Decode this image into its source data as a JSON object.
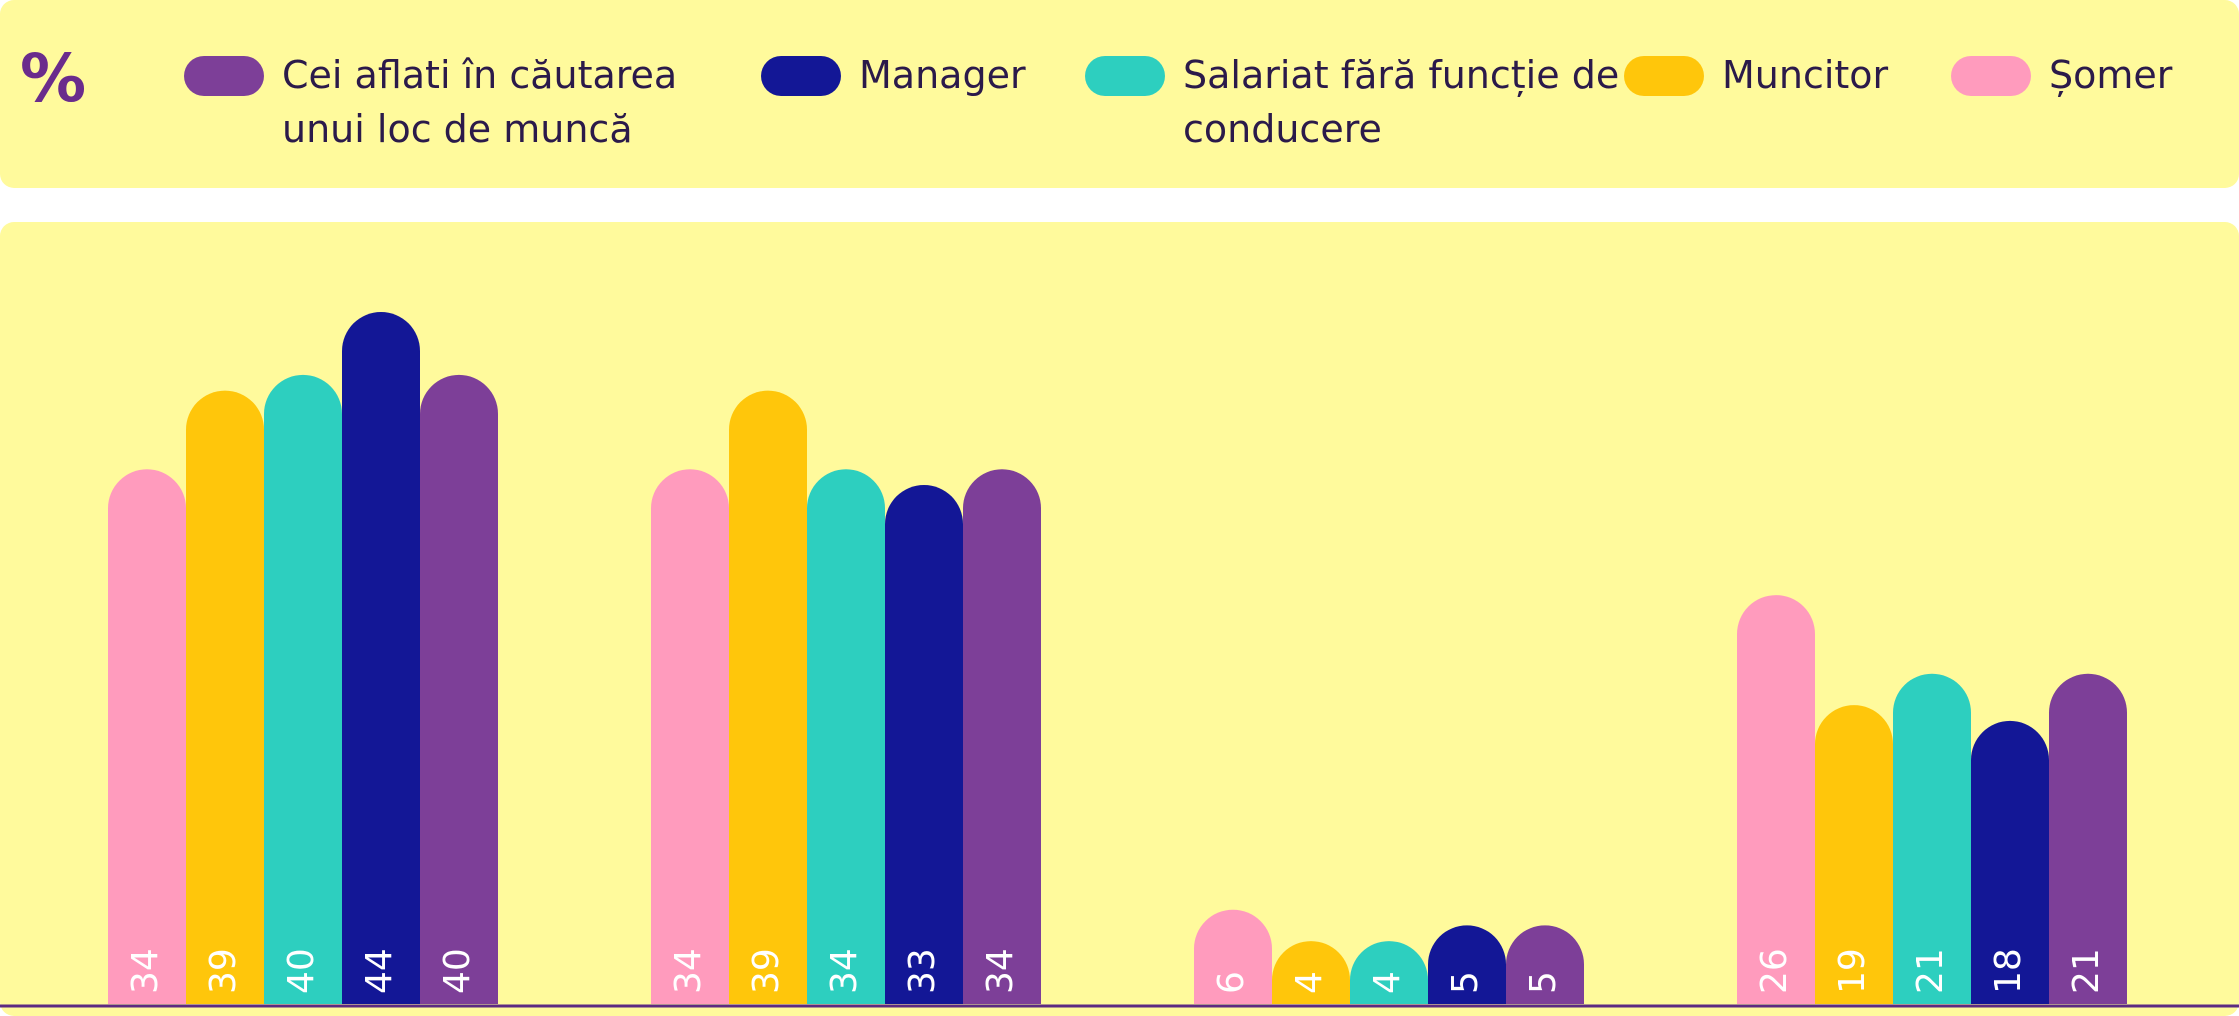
{
  "chart_data": {
    "type": "bar",
    "title": "%",
    "categories": [
      null,
      null,
      null,
      null
    ],
    "series": [
      {
        "name": "Cei aflati în căutarea unui loc de muncă",
        "color": "#7d3f98",
        "values": [
          40,
          34,
          5,
          21
        ]
      },
      {
        "name": "Manager",
        "color": "#131796",
        "values": [
          44,
          33,
          5,
          18
        ]
      },
      {
        "name": "Salariat fără funcție de conducere",
        "color": "#2dcfbf",
        "values": [
          40,
          34,
          4,
          21
        ]
      },
      {
        "name": "Muncitor",
        "color": "#ffc60b",
        "values": [
          39,
          39,
          4,
          19
        ]
      },
      {
        "name": "Șomer",
        "color": "#ff9bbd",
        "values": [
          34,
          34,
          6,
          26
        ]
      }
    ]
  }
}
